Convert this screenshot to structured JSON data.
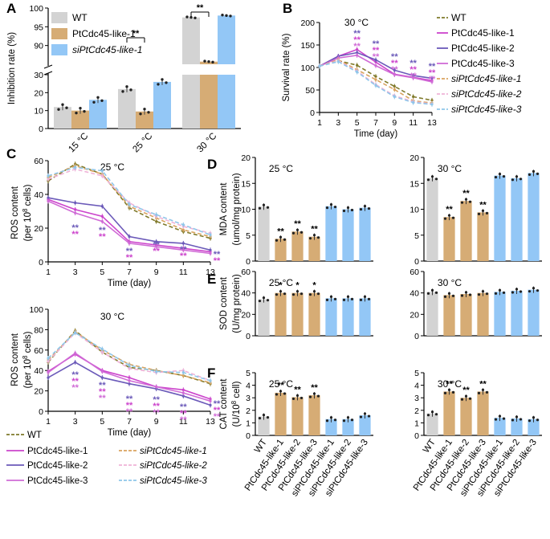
{
  "colors": {
    "wt": "#d3d3d3",
    "oe": "#d6ac75",
    "si": "#93c7f6",
    "wt_line": "#7f7a2a",
    "oe1": "#cc44cc",
    "oe2": "#6b5ab9",
    "oe3": "#d06bd6",
    "si1": "#d9a35f",
    "si2": "#efb3d8",
    "si3": "#8fc6ea"
  },
  "chart_data": [
    {
      "id": "A",
      "panel_label": "A",
      "type": "bar",
      "ylabel": "Inhibition rate (%)",
      "categories": [
        "15 °C",
        "25 °C",
        "30 °C"
      ],
      "legend": [
        "WT",
        "PtCdc45-like-1",
        "siPtCdc45-like-1"
      ],
      "ylim_lower": [
        0,
        30
      ],
      "ylim_upper": [
        85,
        100
      ],
      "yticks_lower": [
        0,
        10,
        20,
        30
      ],
      "yticks_upper": [
        90,
        95,
        100
      ],
      "series": [
        {
          "name": "WT",
          "values": [
            12,
            22,
            97.5
          ]
        },
        {
          "name": "PtCdc45-like-1",
          "values": [
            10,
            9.5,
            85.7
          ]
        },
        {
          "name": "siPtCdc45-like-1",
          "values": [
            16,
            26,
            98
          ]
        }
      ],
      "significance": [
        "**",
        "**"
      ]
    },
    {
      "id": "B",
      "panel_label": "B",
      "type": "line",
      "title": "30 °C",
      "xlabel": "Time (day)",
      "ylabel": "Survival rate (%)",
      "x": [
        1,
        3,
        5,
        7,
        9,
        11,
        13
      ],
      "xlim": [
        1,
        13
      ],
      "ylim": [
        0,
        200
      ],
      "yticks": [
        0,
        50,
        100,
        150,
        200
      ],
      "series": [
        {
          "name": "WT",
          "values": [
            103,
            115,
            105,
            80,
            58,
            35,
            27
          ]
        },
        {
          "name": "PtCdc45-like-1",
          "values": [
            103,
            125,
            140,
            112,
            85,
            78,
            71
          ]
        },
        {
          "name": "PtCdc45-like-2",
          "values": [
            103,
            125,
            133,
            117,
            94,
            82,
            76
          ]
        },
        {
          "name": "PtCdc45-like-3",
          "values": [
            103,
            121,
            127,
            104,
            84,
            77,
            68
          ]
        },
        {
          "name": "siPtCdc45-like-1",
          "values": [
            103,
            117,
            95,
            73,
            51,
            26,
            21
          ]
        },
        {
          "name": "siPtCdc45-like-2",
          "values": [
            103,
            115,
            92,
            62,
            37,
            24,
            19
          ]
        },
        {
          "name": "siPtCdc45-like-3",
          "values": [
            103,
            113,
            90,
            60,
            35,
            22,
            18
          ]
        }
      ]
    },
    {
      "id": "C1",
      "panel_label": "C",
      "type": "line",
      "title": "25 °C",
      "xlabel": "Time (day)",
      "ylabel_lines": [
        "ROS content",
        "(per 10",
        "8",
        " cells)"
      ],
      "x": [
        1,
        3,
        5,
        7,
        9,
        11,
        13
      ],
      "xlim": [
        1,
        13
      ],
      "ylim": [
        0,
        60
      ],
      "yticks": [
        0,
        20,
        40,
        60
      ],
      "series": [
        {
          "name": "WT",
          "values": [
            48,
            58,
            52,
            32,
            24,
            18,
            14
          ]
        },
        {
          "name": "PtCdc45-like-1",
          "values": [
            37,
            31,
            27,
            12,
            10,
            8,
            6
          ]
        },
        {
          "name": "PtCdc45-like-2",
          "values": [
            38,
            35,
            33,
            15,
            12,
            11,
            7
          ]
        },
        {
          "name": "PtCdc45-like-3",
          "values": [
            36,
            29,
            24,
            11,
            9,
            7,
            5
          ]
        },
        {
          "name": "siPtCdc45-like-1",
          "values": [
            50,
            57,
            52,
            33,
            26,
            19,
            15
          ]
        },
        {
          "name": "siPtCdc45-like-2",
          "values": [
            49,
            55,
            51,
            35,
            27,
            21,
            17
          ]
        },
        {
          "name": "siPtCdc45-like-3",
          "values": [
            51,
            56,
            54,
            34,
            28,
            22,
            16
          ]
        }
      ]
    },
    {
      "id": "C2",
      "panel_label": "",
      "type": "line",
      "title": "30 °C",
      "xlabel": "Time (day)",
      "ylabel_lines": [
        "ROS content",
        "(per 10",
        "8",
        " cells)"
      ],
      "x": [
        1,
        3,
        5,
        7,
        9,
        11,
        13
      ],
      "xlim": [
        1,
        13
      ],
      "ylim": [
        0,
        100
      ],
      "yticks": [
        0,
        20,
        40,
        60,
        80,
        100
      ],
      "series": [
        {
          "name": "WT",
          "values": [
            48,
            79,
            58,
            43,
            40,
            35,
            27
          ]
        },
        {
          "name": "PtCdc45-like-1",
          "values": [
            39,
            56,
            40,
            33,
            24,
            21,
            12
          ]
        },
        {
          "name": "PtCdc45-like-2",
          "values": [
            33,
            48,
            33,
            27,
            22,
            15,
            6
          ]
        },
        {
          "name": "PtCdc45-like-3",
          "values": [
            38,
            57,
            39,
            30,
            24,
            18,
            10
          ]
        },
        {
          "name": "siPtCdc45-like-1",
          "values": [
            50,
            78,
            60,
            46,
            40,
            35,
            28
          ]
        },
        {
          "name": "siPtCdc45-like-2",
          "values": [
            49,
            77,
            58,
            42,
            38,
            40,
            30
          ]
        },
        {
          "name": "siPtCdc45-like-3",
          "values": [
            52,
            77,
            61,
            45,
            39,
            38,
            30
          ]
        }
      ]
    },
    {
      "id": "D1",
      "panel_label": "D",
      "type": "bar",
      "title": "25 °C",
      "ylabel_lines": [
        "MDA content",
        "(umol/mg protein)"
      ],
      "ylim": [
        0,
        20
      ],
      "yticks": [
        0,
        5,
        10,
        15,
        20
      ],
      "values": [
        10.5,
        4.3,
        5.7,
        4.7,
        10.6,
        10.0,
        10.3
      ],
      "significance": [
        "",
        "**",
        "**",
        "**",
        "",
        "",
        ""
      ]
    },
    {
      "id": "D2",
      "panel_label": "",
      "type": "bar",
      "title": "30 °C",
      "ylim": [
        0,
        20
      ],
      "yticks": [
        0,
        5,
        10,
        15,
        20
      ],
      "values": [
        16.0,
        8.5,
        11.6,
        9.4,
        16.5,
        16.0,
        17.0
      ],
      "significance": [
        "",
        "**",
        "**",
        "**",
        "",
        "",
        ""
      ]
    },
    {
      "id": "E1",
      "panel_label": "E",
      "type": "bar",
      "title": "25 °C",
      "ylabel_lines": [
        "SOD content",
        "(U/mg protein)"
      ],
      "ylim": [
        0,
        60
      ],
      "yticks": [
        0,
        20,
        40,
        60
      ],
      "values": [
        34,
        40,
        40,
        40,
        35,
        35,
        35
      ],
      "significance": [
        "",
        "*",
        "*",
        "*",
        "",
        "",
        ""
      ]
    },
    {
      "id": "E2",
      "panel_label": "",
      "type": "bar",
      "title": "30 °C",
      "ylim": [
        0,
        60
      ],
      "yticks": [
        0,
        20,
        40,
        60
      ],
      "values": [
        41,
        38,
        39,
        40,
        41,
        42,
        43
      ],
      "significance": [
        "",
        "",
        "",
        "",
        "",
        "",
        ""
      ]
    },
    {
      "id": "F1",
      "panel_label": "F",
      "type": "bar",
      "title": "25 °C",
      "ylabel_lines": [
        "CAT content",
        "(U/10",
        "8",
        " cell)"
      ],
      "ylim": [
        0,
        5
      ],
      "yticks": [
        0,
        1,
        2,
        3,
        4,
        5
      ],
      "values": [
        1.5,
        3.4,
        3.05,
        3.2,
        1.3,
        1.3,
        1.6
      ],
      "significance": [
        "",
        "**",
        "**",
        "**",
        "",
        "",
        ""
      ]
    },
    {
      "id": "F2",
      "panel_label": "",
      "type": "bar",
      "title": "30 °C",
      "ylim": [
        0,
        5
      ],
      "yticks": [
        0,
        1,
        2,
        3,
        4,
        5
      ],
      "values": [
        1.75,
        3.5,
        3.0,
        3.5,
        1.4,
        1.35,
        1.3
      ],
      "significance": [
        "",
        "**",
        "**",
        "**",
        "",
        "",
        ""
      ]
    }
  ],
  "bar_categories": [
    "WT",
    "PtCdc45-like-1",
    "PtCdc45-like-2",
    "PtCdc45-like-3",
    "siPtCdc45-like-1",
    "siPtCdc45-like-2",
    "siPtCdc45-like-3"
  ],
  "legend_B": [
    "WT",
    "PtCdc45-like-1",
    "PtCdc45-like-2",
    "PtCdc45-like-3",
    "siPtCdc45-like-1",
    "siPtCdc45-like-2",
    "siPtCdc45-like-3"
  ],
  "legend_C": [
    "WT",
    "PtCdc45-like-1",
    "PtCdc45-like-2",
    "PtCdc45-like-3",
    "siPtCdc45-like-1",
    "siPtCdc45-like-2",
    "siPtCdc45-like-3"
  ],
  "sig_marks": {
    "double": "**",
    "single": "*"
  }
}
